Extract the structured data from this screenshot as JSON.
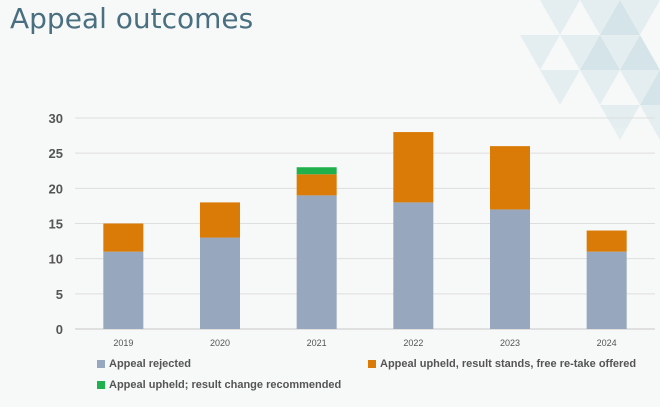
{
  "slide": {
    "title": "Appeal outcomes"
  },
  "chart_data": {
    "type": "bar",
    "stacked": true,
    "categories": [
      "2019",
      "2020",
      "2021",
      "2022",
      "2023",
      "2024"
    ],
    "series": [
      {
        "name": "Appeal rejected",
        "color": "#97a7bd",
        "values": [
          11,
          13,
          19,
          18,
          17,
          11
        ]
      },
      {
        "name": "Appeal upheld, result stands, free re-take offered",
        "color": "#d97b06",
        "values": [
          4,
          5,
          3,
          10,
          9,
          3
        ]
      },
      {
        "name": "Appeal upheld; result change recommended",
        "color": "#21b14c",
        "values": [
          0,
          0,
          1,
          0,
          0,
          0
        ]
      }
    ],
    "yticks": [
      0,
      5,
      10,
      15,
      20,
      25,
      30
    ],
    "ylim": [
      0,
      30
    ],
    "grid": true,
    "legend_position": "bottom"
  }
}
